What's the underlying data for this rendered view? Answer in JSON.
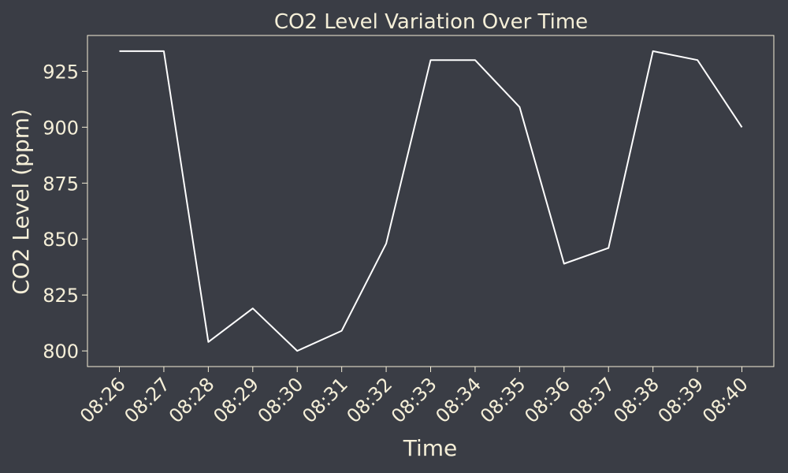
{
  "chart_data": {
    "type": "line",
    "title": "CO2 Level Variation Over Time",
    "xlabel": "Time",
    "ylabel": "CO2 Level (ppm)",
    "categories": [
      "08:26",
      "08:27",
      "08:28",
      "08:29",
      "08:30",
      "08:31",
      "08:32",
      "08:33",
      "08:34",
      "08:35",
      "08:36",
      "08:37",
      "08:38",
      "08:39",
      "08:40"
    ],
    "values": [
      934,
      934,
      804,
      819,
      800,
      809,
      848,
      930,
      930,
      909,
      839,
      846,
      934,
      930,
      900
    ],
    "yticks": [
      800,
      825,
      850,
      875,
      900,
      925
    ],
    "ylim": [
      793,
      941
    ],
    "grid": false,
    "colors": {
      "background": "#3a3d45",
      "text": "#f5efd8",
      "line": "#ffffff",
      "frame": "#f5efd8"
    }
  }
}
